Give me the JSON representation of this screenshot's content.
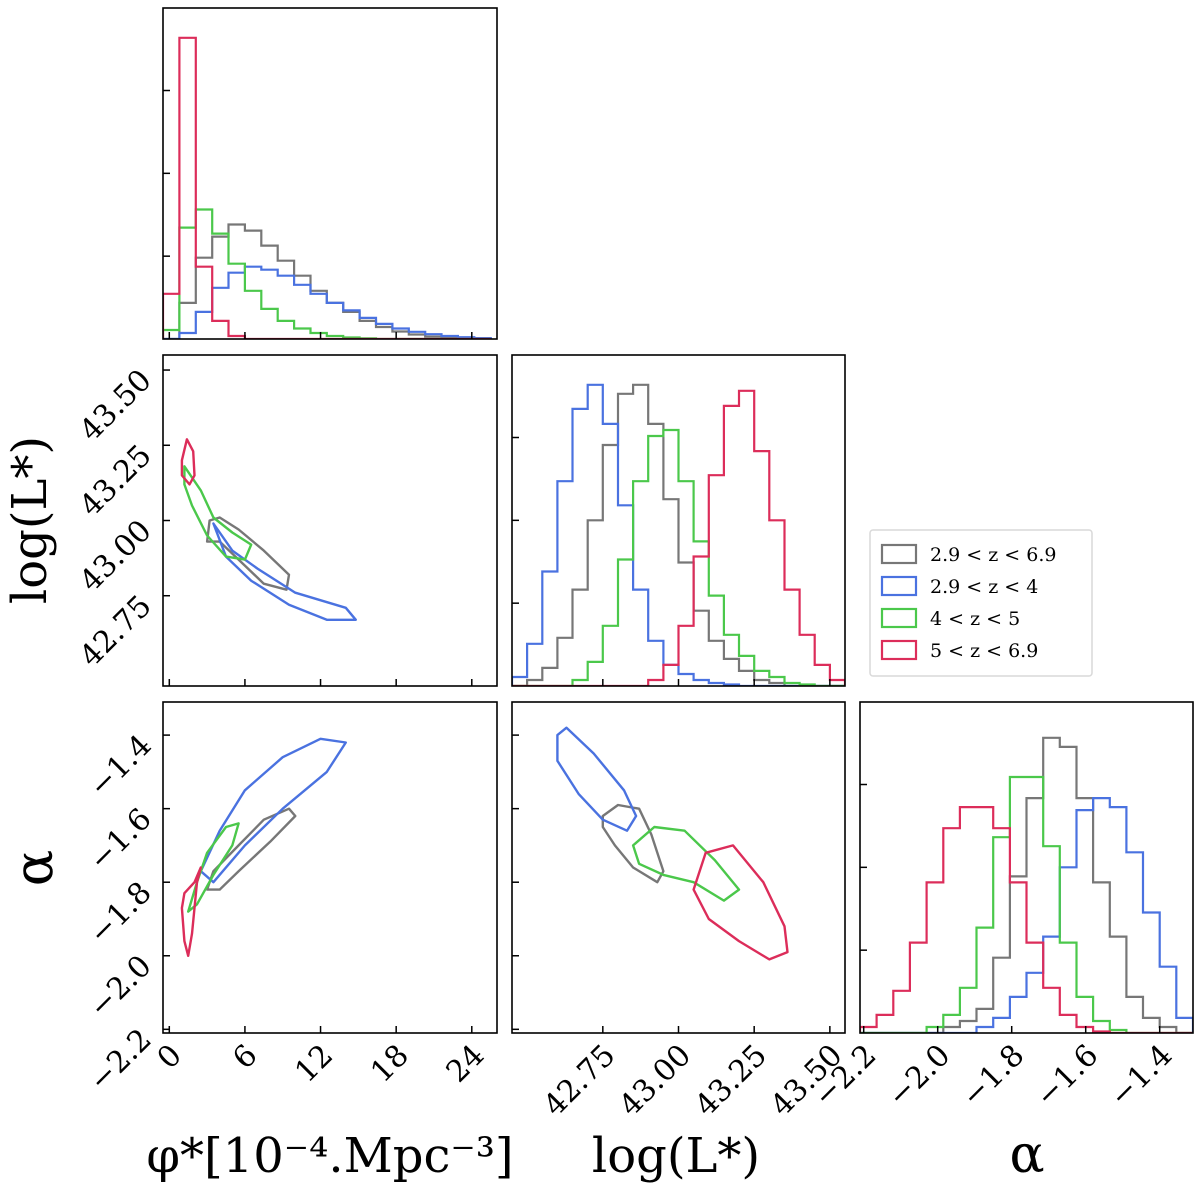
{
  "chart_data": {
    "type": "corner",
    "parameters": [
      "phi_star",
      "logL_star",
      "alpha"
    ],
    "axes": {
      "phi_star": {
        "label": "φ*[10⁻⁴.Mpc⁻³]",
        "range": [
          -0.5,
          26
        ],
        "ticks": [
          0,
          6,
          12,
          18,
          24
        ],
        "tick_labels": [
          "0",
          "6",
          "12",
          "18",
          "24"
        ]
      },
      "logL_star": {
        "label": "log(L*)",
        "range": [
          42.45,
          43.55
        ],
        "ticks": [
          42.75,
          43.0,
          43.25,
          43.5
        ],
        "tick_labels": [
          "42.75",
          "43.00",
          "43.25",
          "43.50"
        ]
      },
      "alpha": {
        "label": "α",
        "range": [
          -2.21,
          -1.31
        ],
        "ticks": [
          -2.2,
          -2.0,
          -1.8,
          -1.6,
          -1.4
        ],
        "tick_labels": [
          "−2.2",
          "−2.0",
          "−1.8",
          "−1.6",
          "−1.4"
        ]
      }
    },
    "legend": {
      "position": "right",
      "entries": [
        "2.9 < z < 6.9",
        "2.9 < z < 4",
        "4 < z < 5",
        "5 < z < 6.9"
      ]
    },
    "series": [
      {
        "name": "2.9 < z < 6.9",
        "color": "#777777",
        "hist_phi": {
          "edges": [
            -0.5,
            0.8,
            2.1,
            3.4,
            4.7,
            6.0,
            7.3,
            8.6,
            9.9,
            11.2,
            12.5,
            13.8,
            15.1,
            16.4,
            17.7,
            19.0,
            20.3,
            21.6,
            22.9,
            24.2,
            25.5
          ],
          "counts": [
            0,
            0.12,
            0.27,
            0.34,
            0.38,
            0.36,
            0.31,
            0.26,
            0.21,
            0.16,
            0.12,
            0.09,
            0.06,
            0.04,
            0.025,
            0.015,
            0.008,
            0.004,
            0.002,
            0.001
          ]
        },
        "hist_logL": {
          "edges": [
            42.45,
            42.5,
            42.55,
            42.6,
            42.65,
            42.7,
            42.75,
            42.8,
            42.85,
            42.9,
            42.95,
            43.0,
            43.05,
            43.1,
            43.15,
            43.2,
            43.25,
            43.3,
            43.35,
            43.4,
            43.45,
            43.5,
            43.55
          ],
          "counts": [
            0,
            0.02,
            0.06,
            0.16,
            0.32,
            0.55,
            0.8,
            0.97,
            1.0,
            0.87,
            0.62,
            0.41,
            0.25,
            0.15,
            0.09,
            0.05,
            0.02,
            0.01,
            0,
            0,
            0,
            0
          ]
        },
        "hist_alpha": {
          "edges": [
            -2.21,
            -2.165,
            -2.12,
            -2.075,
            -2.03,
            -1.985,
            -1.94,
            -1.895,
            -1.85,
            -1.805,
            -1.76,
            -1.715,
            -1.67,
            -1.625,
            -1.58,
            -1.535,
            -1.49,
            -1.445,
            -1.4,
            -1.355,
            -1.31
          ],
          "counts": [
            0,
            0,
            0,
            0,
            0,
            0.02,
            0.04,
            0.08,
            0.25,
            0.52,
            0.78,
            0.98,
            0.95,
            0.78,
            0.5,
            0.32,
            0.12,
            0.05,
            0.02,
            0
          ]
        },
        "contour_phi_logL": [
          [
            3.0,
            42.93
          ],
          [
            3.2,
            43.0
          ],
          [
            4.0,
            43.01
          ],
          [
            5.5,
            42.97
          ],
          [
            7.5,
            42.9
          ],
          [
            9.5,
            42.82
          ],
          [
            9.3,
            42.77
          ],
          [
            7.5,
            42.79
          ],
          [
            5.5,
            42.87
          ],
          [
            4.0,
            42.93
          ],
          [
            3.0,
            42.93
          ]
        ],
        "contour_phi_alpha": [
          [
            3.0,
            -1.82
          ],
          [
            3.5,
            -1.77
          ],
          [
            5.5,
            -1.7
          ],
          [
            7.5,
            -1.63
          ],
          [
            9.5,
            -1.6
          ],
          [
            10.0,
            -1.62
          ],
          [
            8.0,
            -1.69
          ],
          [
            5.5,
            -1.77
          ],
          [
            4.0,
            -1.82
          ],
          [
            3.0,
            -1.82
          ]
        ],
        "contour_logL_alpha": [
          [
            42.75,
            -1.62
          ],
          [
            42.8,
            -1.59
          ],
          [
            42.87,
            -1.6
          ],
          [
            42.91,
            -1.67
          ],
          [
            42.95,
            -1.77
          ],
          [
            42.93,
            -1.8
          ],
          [
            42.85,
            -1.76
          ],
          [
            42.79,
            -1.7
          ],
          [
            42.75,
            -1.65
          ],
          [
            42.75,
            -1.62
          ]
        ]
      },
      {
        "name": "2.9 < z < 4",
        "color": "#4a72e0",
        "hist_phi": {
          "edges": [
            -0.5,
            0.8,
            2.1,
            3.4,
            4.7,
            6.0,
            7.3,
            8.6,
            9.9,
            11.2,
            12.5,
            13.8,
            15.1,
            16.4,
            17.7,
            19.0,
            20.3,
            21.6,
            22.9,
            24.2,
            25.5
          ],
          "counts": [
            0,
            0.02,
            0.09,
            0.17,
            0.22,
            0.24,
            0.23,
            0.21,
            0.18,
            0.15,
            0.12,
            0.095,
            0.07,
            0.05,
            0.035,
            0.024,
            0.016,
            0.01,
            0.006,
            0.003
          ]
        },
        "hist_logL": {
          "edges": [
            42.45,
            42.5,
            42.55,
            42.6,
            42.65,
            42.7,
            42.75,
            42.8,
            42.85,
            42.9,
            42.95,
            43.0,
            43.05,
            43.1,
            43.15,
            43.2,
            43.25,
            43.3,
            43.35,
            43.4,
            43.45,
            43.5,
            43.55
          ],
          "counts": [
            0.03,
            0.14,
            0.38,
            0.68,
            0.92,
            1.0,
            0.87,
            0.6,
            0.32,
            0.15,
            0.07,
            0.04,
            0.02,
            0.01,
            0.005,
            0,
            0,
            0,
            0,
            0,
            0,
            0
          ]
        },
        "hist_alpha": {
          "edges": [
            -2.21,
            -2.165,
            -2.12,
            -2.075,
            -2.03,
            -1.985,
            -1.94,
            -1.895,
            -1.85,
            -1.805,
            -1.76,
            -1.715,
            -1.67,
            -1.625,
            -1.58,
            -1.535,
            -1.49,
            -1.445,
            -1.4,
            -1.355,
            -1.31
          ],
          "counts": [
            0,
            0,
            0,
            0,
            0,
            0,
            0,
            0.02,
            0.05,
            0.12,
            0.2,
            0.32,
            0.55,
            0.74,
            0.78,
            0.75,
            0.6,
            0.4,
            0.22,
            0.05
          ]
        },
        "contour_phi_logL": [
          [
            3.5,
            42.99
          ],
          [
            4.5,
            42.88
          ],
          [
            6.5,
            42.8
          ],
          [
            9.5,
            42.72
          ],
          [
            12.5,
            42.67
          ],
          [
            14.8,
            42.67
          ],
          [
            14.0,
            42.71
          ],
          [
            10.0,
            42.76
          ],
          [
            7.0,
            42.84
          ],
          [
            5.0,
            42.9
          ],
          [
            3.5,
            42.99
          ]
        ],
        "contour_phi_alpha": [
          [
            2.5,
            -1.77
          ],
          [
            4.0,
            -1.66
          ],
          [
            6.0,
            -1.55
          ],
          [
            9.0,
            -1.46
          ],
          [
            12.0,
            -1.41
          ],
          [
            14.0,
            -1.42
          ],
          [
            12.5,
            -1.5
          ],
          [
            9.0,
            -1.6
          ],
          [
            6.0,
            -1.7
          ],
          [
            3.5,
            -1.8
          ],
          [
            2.5,
            -1.77
          ]
        ],
        "contour_logL_alpha": [
          [
            42.6,
            -1.4
          ],
          [
            42.63,
            -1.38
          ],
          [
            42.72,
            -1.45
          ],
          [
            42.82,
            -1.55
          ],
          [
            42.86,
            -1.62
          ],
          [
            42.83,
            -1.66
          ],
          [
            42.75,
            -1.63
          ],
          [
            42.67,
            -1.56
          ],
          [
            42.6,
            -1.47
          ],
          [
            42.6,
            -1.4
          ]
        ]
      },
      {
        "name": "4 < z < 5",
        "color": "#4bc84b",
        "hist_phi": {
          "edges": [
            -0.5,
            0.8,
            2.1,
            3.4,
            4.7,
            6.0,
            7.3,
            8.6,
            9.9,
            11.2,
            12.5,
            13.8,
            15.1,
            16.4,
            17.7,
            19.0,
            20.3,
            21.6,
            22.9,
            24.2,
            25.5
          ],
          "counts": [
            0.03,
            0.37,
            0.43,
            0.35,
            0.25,
            0.16,
            0.1,
            0.06,
            0.035,
            0.02,
            0.01,
            0.005,
            0.002,
            0,
            0,
            0,
            0,
            0,
            0,
            0
          ]
        },
        "hist_logL": {
          "edges": [
            42.45,
            42.5,
            42.55,
            42.6,
            42.65,
            42.7,
            42.75,
            42.8,
            42.85,
            42.9,
            42.95,
            43.0,
            43.05,
            43.1,
            43.15,
            43.2,
            43.25,
            43.3,
            43.35,
            43.4,
            43.45,
            43.5,
            43.55
          ],
          "counts": [
            0,
            0,
            0,
            0,
            0.02,
            0.08,
            0.2,
            0.42,
            0.68,
            0.83,
            0.85,
            0.68,
            0.48,
            0.3,
            0.17,
            0.1,
            0.05,
            0.03,
            0.01,
            0.005,
            0,
            0
          ]
        },
        "hist_alpha": {
          "edges": [
            -2.21,
            -2.165,
            -2.12,
            -2.075,
            -2.03,
            -1.985,
            -1.94,
            -1.895,
            -1.85,
            -1.805,
            -1.76,
            -1.715,
            -1.67,
            -1.625,
            -1.58,
            -1.535,
            -1.49,
            -1.445,
            -1.4,
            -1.355,
            -1.31
          ],
          "counts": [
            0,
            0,
            0,
            0,
            0.02,
            0.06,
            0.15,
            0.35,
            0.65,
            0.85,
            0.85,
            0.62,
            0.3,
            0.12,
            0.04,
            0.01,
            0,
            0,
            0,
            0
          ]
        },
        "contour_phi_logL": [
          [
            1.2,
            43.18
          ],
          [
            2.5,
            43.1
          ],
          [
            3.5,
            43.01
          ],
          [
            5.0,
            42.96
          ],
          [
            6.5,
            42.92
          ],
          [
            6.0,
            42.87
          ],
          [
            4.5,
            42.88
          ],
          [
            3.0,
            42.95
          ],
          [
            1.8,
            43.05
          ],
          [
            1.2,
            43.12
          ],
          [
            1.2,
            43.18
          ]
        ],
        "contour_phi_alpha": [
          [
            1.5,
            -1.88
          ],
          [
            2.2,
            -1.8
          ],
          [
            3.0,
            -1.72
          ],
          [
            4.5,
            -1.65
          ],
          [
            5.5,
            -1.64
          ],
          [
            5.0,
            -1.7
          ],
          [
            3.5,
            -1.78
          ],
          [
            2.2,
            -1.86
          ],
          [
            1.5,
            -1.88
          ]
        ],
        "contour_logL_alpha": [
          [
            42.85,
            -1.7
          ],
          [
            42.92,
            -1.65
          ],
          [
            43.02,
            -1.66
          ],
          [
            43.12,
            -1.74
          ],
          [
            43.2,
            -1.82
          ],
          [
            43.15,
            -1.85
          ],
          [
            43.05,
            -1.8
          ],
          [
            42.95,
            -1.78
          ],
          [
            42.87,
            -1.75
          ],
          [
            42.85,
            -1.7
          ]
        ]
      },
      {
        "name": "5 < z < 6.9",
        "color": "#dc2d5a",
        "hist_phi": {
          "edges": [
            -0.5,
            0.8,
            2.1,
            3.4,
            4.7,
            6.0,
            7.3,
            8.6,
            9.9,
            11.2,
            12.5,
            13.8,
            15.1,
            16.4,
            17.7,
            19.0,
            20.3,
            21.6,
            22.9,
            24.2,
            25.5
          ],
          "counts": [
            0.15,
            1.0,
            0.24,
            0.06,
            0.01,
            0,
            0,
            0,
            0,
            0,
            0,
            0,
            0,
            0,
            0,
            0,
            0,
            0,
            0,
            0
          ]
        },
        "hist_logL": {
          "edges": [
            42.45,
            42.5,
            42.55,
            42.6,
            42.65,
            42.7,
            42.75,
            42.8,
            42.85,
            42.9,
            42.95,
            43.0,
            43.05,
            43.1,
            43.15,
            43.2,
            43.25,
            43.3,
            43.35,
            43.4,
            43.45,
            43.5,
            43.55
          ],
          "counts": [
            0,
            0,
            0,
            0,
            0,
            0,
            0,
            0,
            0,
            0.02,
            0.07,
            0.2,
            0.43,
            0.7,
            0.93,
            0.98,
            0.78,
            0.55,
            0.32,
            0.17,
            0.07,
            0.02
          ]
        },
        "hist_alpha": {
          "edges": [
            -2.21,
            -2.165,
            -2.12,
            -2.075,
            -2.03,
            -1.985,
            -1.94,
            -1.895,
            -1.85,
            -1.805,
            -1.76,
            -1.715,
            -1.67,
            -1.625,
            -1.58,
            -1.535,
            -1.49,
            -1.445,
            -1.4,
            -1.355,
            -1.31
          ],
          "counts": [
            0.02,
            0.06,
            0.14,
            0.3,
            0.5,
            0.68,
            0.75,
            0.75,
            0.68,
            0.5,
            0.3,
            0.15,
            0.06,
            0.02,
            0.005,
            0,
            0,
            0,
            0,
            0
          ]
        },
        "contour_phi_logL": [
          [
            1.0,
            43.2
          ],
          [
            1.4,
            43.27
          ],
          [
            1.9,
            43.23
          ],
          [
            2.0,
            43.15
          ],
          [
            1.6,
            43.12
          ],
          [
            1.0,
            43.15
          ],
          [
            1.0,
            43.2
          ]
        ],
        "contour_phi_alpha": [
          [
            1.0,
            -1.87
          ],
          [
            1.2,
            -1.96
          ],
          [
            1.5,
            -2.0
          ],
          [
            1.8,
            -1.94
          ],
          [
            2.2,
            -1.8
          ],
          [
            2.5,
            -1.76
          ],
          [
            2.0,
            -1.8
          ],
          [
            1.2,
            -1.83
          ],
          [
            1.0,
            -1.87
          ]
        ],
        "contour_logL_alpha": [
          [
            43.05,
            -1.82
          ],
          [
            43.09,
            -1.72
          ],
          [
            43.18,
            -1.7
          ],
          [
            43.28,
            -1.8
          ],
          [
            43.35,
            -1.92
          ],
          [
            43.36,
            -1.99
          ],
          [
            43.3,
            -2.01
          ],
          [
            43.2,
            -1.96
          ],
          [
            43.1,
            -1.9
          ],
          [
            43.05,
            -1.82
          ]
        ]
      }
    ]
  }
}
